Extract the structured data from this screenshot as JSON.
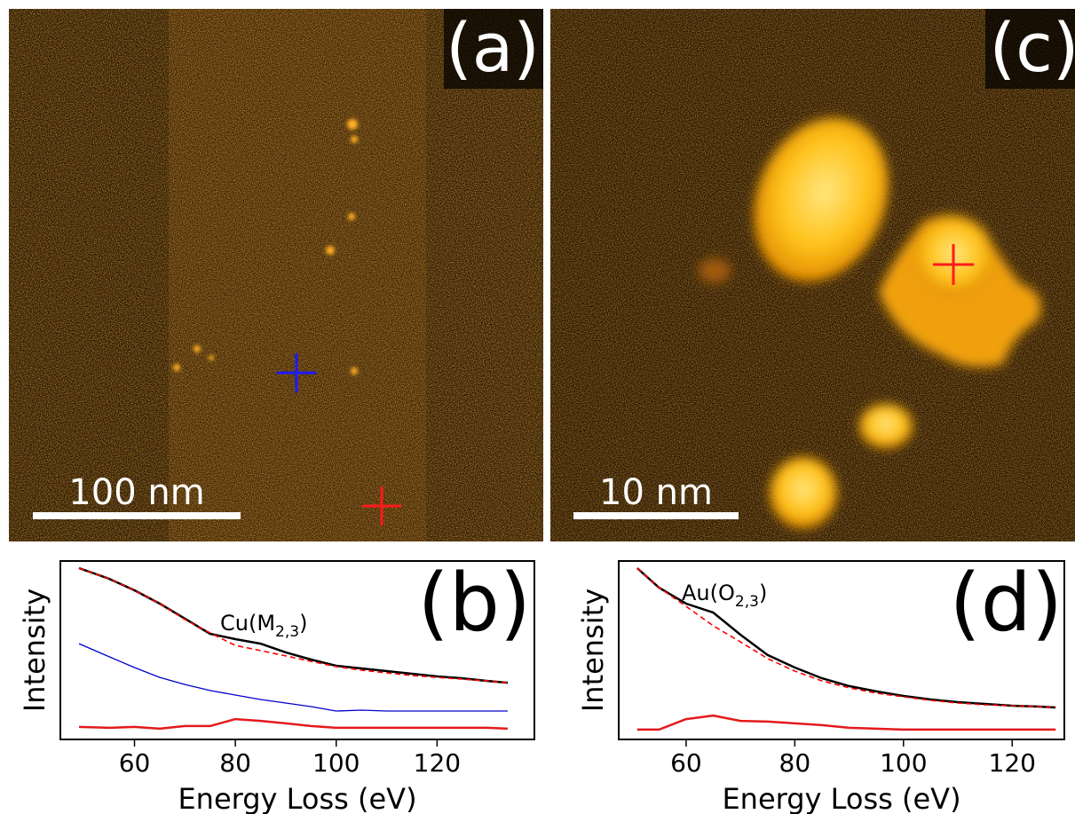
{
  "images": [
    {
      "label": "(a)",
      "scale_bar": "100 nm"
    },
    {
      "label": "(c)",
      "scale_bar": "10 nm"
    }
  ],
  "chart_data": [
    {
      "type": "line",
      "panel_label": "(b)",
      "x_label": "Energy Loss (eV)",
      "y_label": "Intensity",
      "annotation": {
        "text": "Cu(M",
        "sub": "2,3",
        "after": ")"
      },
      "xlim": [
        45.3,
        139.3
      ],
      "xticks": [
        60,
        80,
        100,
        120
      ],
      "ylim": [
        0,
        1
      ],
      "x": [
        49,
        55,
        60,
        65,
        70,
        75,
        80,
        85,
        90,
        95,
        100,
        105,
        110,
        115,
        120,
        125,
        130,
        134
      ],
      "series": [
        {
          "color": "#000000",
          "style": "solid",
          "values": [
            0.96,
            0.9,
            0.836,
            0.761,
            0.677,
            0.592,
            0.562,
            0.537,
            0.488,
            0.448,
            0.413,
            0.398,
            0.383,
            0.368,
            0.353,
            0.343,
            0.328,
            0.318
          ]
        },
        {
          "color": "#ff0000",
          "style": "dashed",
          "values": [
            0.96,
            0.9,
            0.836,
            0.761,
            0.672,
            0.597,
            0.527,
            0.498,
            0.468,
            0.438,
            0.408,
            0.388,
            0.373,
            0.358,
            0.348,
            0.338,
            0.328,
            0.318
          ]
        },
        {
          "color": "#0000cc",
          "style": "solid",
          "values": [
            0.537,
            0.463,
            0.403,
            0.348,
            0.308,
            0.274,
            0.249,
            0.224,
            0.204,
            0.184,
            0.159,
            0.164,
            0.159,
            0.159,
            0.159,
            0.159,
            0.159,
            0.159
          ]
        },
        {
          "color": "#e41a1c",
          "style": "solid",
          "values": [
            0.07,
            0.065,
            0.07,
            0.06,
            0.075,
            0.075,
            0.114,
            0.104,
            0.09,
            0.075,
            0.065,
            0.065,
            0.065,
            0.065,
            0.065,
            0.065,
            0.065,
            0.06
          ]
        }
      ]
    },
    {
      "type": "line",
      "panel_label": "(d)",
      "x_label": "Energy Loss (eV)",
      "y_label": "Intensity",
      "annotation": {
        "text": "Au(O",
        "sub": "2,3",
        "after": ")"
      },
      "xlim": [
        47.6,
        129.6
      ],
      "xticks": [
        60,
        80,
        100,
        120
      ],
      "ylim": [
        0,
        1
      ],
      "x": [
        51,
        55,
        60,
        65,
        70,
        75,
        80,
        85,
        90,
        95,
        100,
        105,
        110,
        115,
        120,
        125,
        128
      ],
      "series": [
        {
          "color": "#000000",
          "style": "solid",
          "values": [
            0.96,
            0.851,
            0.761,
            0.711,
            0.587,
            0.473,
            0.403,
            0.343,
            0.299,
            0.269,
            0.244,
            0.224,
            0.209,
            0.199,
            0.189,
            0.184,
            0.179
          ]
        },
        {
          "color": "#ff0000",
          "style": "dashed",
          "values": [
            0.96,
            0.851,
            0.746,
            0.637,
            0.547,
            0.453,
            0.383,
            0.328,
            0.289,
            0.259,
            0.239,
            0.219,
            0.204,
            0.194,
            0.189,
            0.184,
            0.179
          ]
        },
        {
          "color": "#e41a1c",
          "style": "solid",
          "values": [
            0.055,
            0.055,
            0.114,
            0.134,
            0.104,
            0.1,
            0.09,
            0.08,
            0.065,
            0.06,
            0.055,
            0.055,
            0.055,
            0.055,
            0.055,
            0.055,
            0.055
          ]
        }
      ]
    }
  ]
}
